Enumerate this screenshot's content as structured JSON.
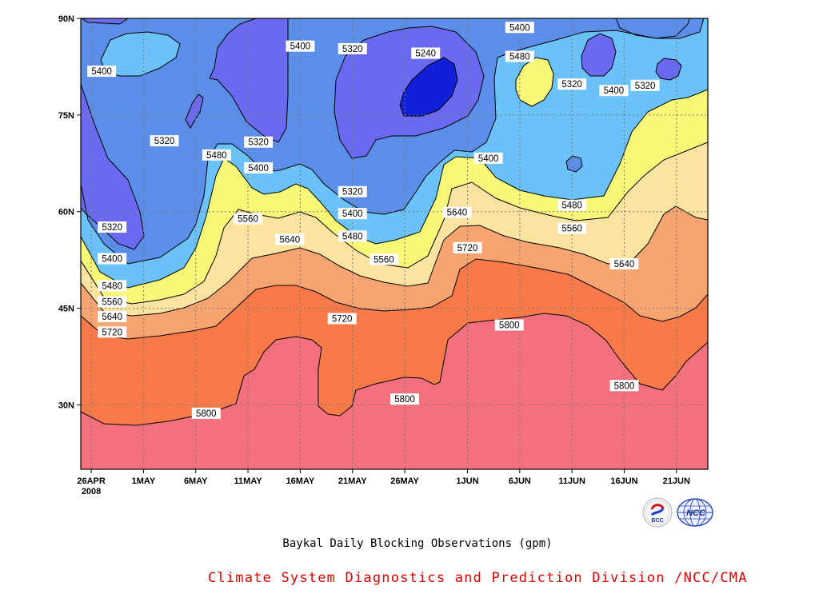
{
  "chart_data": {
    "type": "contour",
    "title": "Baykal Daily Blocking Observations (gpm)",
    "x_ticks": [
      "26APR",
      "1MAY",
      "6MAY",
      "11MAY",
      "16MAY",
      "21MAY",
      "26MAY",
      "1JUN",
      "6JUN",
      "11JUN",
      "16JUN",
      "21JUN"
    ],
    "x_year": "2008",
    "x_range": [
      "2008-04-25",
      "2008-06-24"
    ],
    "y_ticks": [
      "30N",
      "45N",
      "60N",
      "75N",
      "90N"
    ],
    "y_range": [
      20,
      90
    ],
    "grid": true,
    "levels": [
      5240,
      5320,
      5400,
      5480,
      5560,
      5640,
      5720,
      5800
    ],
    "fill_colors": [
      "#6a6af0",
      "#5a8ee8",
      "#6ac2f8",
      "#f8f878",
      "#fce3a0",
      "#f8a470",
      "#f87a48",
      "#f4707e"
    ],
    "contour_labels": [
      {
        "text": "5400",
        "date": "2008-04-27",
        "lat": 81.8
      },
      {
        "text": "5320",
        "date": "2008-05-03",
        "lat": 71.0
      },
      {
        "text": "5320",
        "date": "2008-04-28",
        "lat": 57.6
      },
      {
        "text": "5400",
        "date": "2008-04-28",
        "lat": 52.7
      },
      {
        "text": "5480",
        "date": "2008-04-28",
        "lat": 48.5
      },
      {
        "text": "5560",
        "date": "2008-04-28",
        "lat": 46.0
      },
      {
        "text": "5640",
        "date": "2008-04-28",
        "lat": 43.7
      },
      {
        "text": "5720",
        "date": "2008-04-28",
        "lat": 41.3
      },
      {
        "text": "5480",
        "date": "2008-05-08",
        "lat": 68.8
      },
      {
        "text": "5320",
        "date": "2008-05-12",
        "lat": 70.8
      },
      {
        "text": "5400",
        "date": "2008-05-12",
        "lat": 66.8
      },
      {
        "text": "5560",
        "date": "2008-05-11",
        "lat": 58.9
      },
      {
        "text": "5640",
        "date": "2008-05-15",
        "lat": 55.7
      },
      {
        "text": "5400",
        "date": "2008-05-16",
        "lat": 85.7
      },
      {
        "text": "5320",
        "date": "2008-05-21",
        "lat": 85.3
      },
      {
        "text": "5240",
        "date": "2008-05-28",
        "lat": 84.6
      },
      {
        "text": "5320",
        "date": "2008-05-21",
        "lat": 63.1
      },
      {
        "text": "5400",
        "date": "2008-05-21",
        "lat": 59.7
      },
      {
        "text": "5480",
        "date": "2008-05-21",
        "lat": 56.2
      },
      {
        "text": "5560",
        "date": "2008-05-24",
        "lat": 52.6
      },
      {
        "text": "5720",
        "date": "2008-05-20",
        "lat": 43.4
      },
      {
        "text": "5800",
        "date": "2008-05-26",
        "lat": 30.9
      },
      {
        "text": "5640",
        "date": "2008-05-31",
        "lat": 59.9
      },
      {
        "text": "5720",
        "date": "2008-06-01",
        "lat": 54.4
      },
      {
        "text": "5400",
        "date": "2008-06-03",
        "lat": 68.3
      },
      {
        "text": "5800",
        "date": "2008-06-05",
        "lat": 42.4
      },
      {
        "text": "5400",
        "date": "2008-06-06",
        "lat": 88.6
      },
      {
        "text": "5480",
        "date": "2008-06-06",
        "lat": 84.1
      },
      {
        "text": "5320",
        "date": "2008-06-11",
        "lat": 79.8
      },
      {
        "text": "5480",
        "date": "2008-06-11",
        "lat": 61.0
      },
      {
        "text": "5560",
        "date": "2008-06-11",
        "lat": 57.4
      },
      {
        "text": "5400",
        "date": "2008-06-15",
        "lat": 78.8
      },
      {
        "text": "5320",
        "date": "2008-06-18",
        "lat": 79.6
      },
      {
        "text": "5640",
        "date": "2008-06-16",
        "lat": 51.9
      },
      {
        "text": "5800",
        "date": "2008-06-16",
        "lat": 33.0
      },
      {
        "text": "5800",
        "date": "2008-05-07",
        "lat": 28.7
      }
    ]
  },
  "footer": {
    "credit": "Climate System Diagnostics and Prediction Division /NCC/CMA",
    "logos": [
      {
        "icon": "bcc-logo-icon",
        "text": "BCC"
      },
      {
        "icon": "ncc-logo-icon",
        "text": "NCC"
      }
    ]
  }
}
